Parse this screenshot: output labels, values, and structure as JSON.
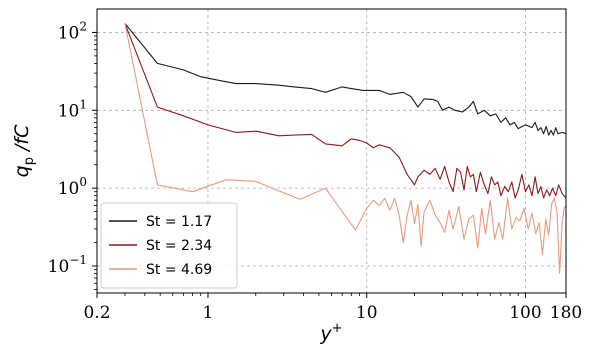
{
  "chart_data": {
    "type": "line",
    "title": "",
    "x_scale": "log",
    "y_scale": "log",
    "xlim": [
      0.2,
      180
    ],
    "ylim": [
      0.045,
      200
    ],
    "grid": true,
    "legend_position": "lower-left",
    "xlabel": {
      "base": "y",
      "sup": "+"
    },
    "ylabel": {
      "base": "q",
      "sub": "p",
      "tail": " /fC"
    },
    "x_ticks": [
      {
        "value": 0.2,
        "label": "0.2"
      },
      {
        "value": 1,
        "label": "1"
      },
      {
        "value": 10,
        "label": "10"
      },
      {
        "value": 100,
        "label": "100"
      },
      {
        "value": 180,
        "label": "180"
      }
    ],
    "y_ticks": [
      {
        "value": 0.1,
        "base": "10",
        "exp": "−1"
      },
      {
        "value": 1,
        "base": "10",
        "exp": "0"
      },
      {
        "value": 10,
        "base": "10",
        "exp": "1"
      },
      {
        "value": 100,
        "base": "10",
        "exp": "2"
      }
    ],
    "series": [
      {
        "name": "St = 1.17",
        "color": "#1a1a1a",
        "points": [
          [
            0.3,
            130
          ],
          [
            0.48,
            40
          ],
          [
            0.7,
            33
          ],
          [
            0.9,
            27
          ],
          [
            1.2,
            24
          ],
          [
            1.5,
            22
          ],
          [
            2,
            22
          ],
          [
            2.8,
            21
          ],
          [
            3.5,
            20
          ],
          [
            4.5,
            19
          ],
          [
            5.5,
            17
          ],
          [
            7,
            20
          ],
          [
            8,
            19
          ],
          [
            9.5,
            18
          ],
          [
            10,
            18
          ],
          [
            12,
            18
          ],
          [
            14,
            16
          ],
          [
            17,
            17
          ],
          [
            19,
            15
          ],
          [
            21,
            11
          ],
          [
            23,
            14
          ],
          [
            26,
            13.8
          ],
          [
            28,
            13
          ],
          [
            30,
            10
          ],
          [
            33,
            11
          ],
          [
            36,
            10
          ],
          [
            40,
            9.5
          ],
          [
            44,
            11
          ],
          [
            47,
            13
          ],
          [
            50,
            9
          ],
          [
            55,
            10
          ],
          [
            60,
            8.5
          ],
          [
            65,
            9
          ],
          [
            70,
            7
          ],
          [
            75,
            8
          ],
          [
            80,
            6.5
          ],
          [
            85,
            7
          ],
          [
            90,
            5.8
          ],
          [
            95,
            6.2
          ],
          [
            100,
            6.5
          ],
          [
            110,
            6
          ],
          [
            115,
            7
          ],
          [
            120,
            5.5
          ],
          [
            125,
            6
          ],
          [
            130,
            5
          ],
          [
            135,
            6.2
          ],
          [
            140,
            4.8
          ],
          [
            145,
            5.5
          ],
          [
            150,
            4.8
          ],
          [
            155,
            6
          ],
          [
            160,
            5
          ],
          [
            170,
            5.2
          ],
          [
            180,
            5
          ]
        ]
      },
      {
        "name": "St = 2.34",
        "color": "#8b1a1a",
        "points": [
          [
            0.3,
            130
          ],
          [
            0.48,
            11
          ],
          [
            0.7,
            8.5
          ],
          [
            1,
            6.5
          ],
          [
            1.5,
            5.2
          ],
          [
            2,
            5.4
          ],
          [
            2.8,
            4.7
          ],
          [
            3.5,
            4.8
          ],
          [
            4.5,
            4.9
          ],
          [
            5.5,
            3.7
          ],
          [
            7,
            3.5
          ],
          [
            8,
            4.3
          ],
          [
            9,
            4.1
          ],
          [
            10,
            3.8
          ],
          [
            11,
            3.3
          ],
          [
            12,
            3.6
          ],
          [
            14,
            3.3
          ],
          [
            16,
            2.5
          ],
          [
            18,
            1.5
          ],
          [
            20,
            1.1
          ],
          [
            21,
            1.4
          ],
          [
            23,
            1.7
          ],
          [
            25,
            1.5
          ],
          [
            27,
            1.8
          ],
          [
            29,
            1.3
          ],
          [
            31,
            1.9
          ],
          [
            33,
            1.2
          ],
          [
            35,
            0.9
          ],
          [
            37,
            1.8
          ],
          [
            39,
            1.6
          ],
          [
            41,
            0.95
          ],
          [
            43,
            1.9
          ],
          [
            45,
            1.4
          ],
          [
            47,
            1.5
          ],
          [
            49,
            0.9
          ],
          [
            52,
            1.6
          ],
          [
            55,
            1.1
          ],
          [
            58,
            0.85
          ],
          [
            61,
            1.4
          ],
          [
            64,
            1.1
          ],
          [
            67,
            1.2
          ],
          [
            70,
            0.8
          ],
          [
            74,
            1.05
          ],
          [
            78,
            0.9
          ],
          [
            82,
            1.2
          ],
          [
            86,
            0.75
          ],
          [
            90,
            0.95
          ],
          [
            95,
            1.5
          ],
          [
            100,
            0.9
          ],
          [
            105,
            1.1
          ],
          [
            110,
            0.8
          ],
          [
            115,
            1.4
          ],
          [
            120,
            0.85
          ],
          [
            125,
            1.05
          ],
          [
            130,
            0.75
          ],
          [
            136,
            0.95
          ],
          [
            142,
            0.8
          ],
          [
            148,
            1.0
          ],
          [
            155,
            0.8
          ],
          [
            162,
            1.1
          ],
          [
            170,
            0.85
          ],
          [
            180,
            0.75
          ]
        ]
      },
      {
        "name": "St = 4.69",
        "color": "#e89a80",
        "points": [
          [
            0.3,
            130
          ],
          [
            0.48,
            1.1
          ],
          [
            0.8,
            0.9
          ],
          [
            1.3,
            1.28
          ],
          [
            2,
            1.22
          ],
          [
            2.8,
            0.92
          ],
          [
            3.8,
            0.72
          ],
          [
            5.5,
            1.0
          ],
          [
            7,
            0.5
          ],
          [
            8.5,
            0.29
          ],
          [
            10,
            0.55
          ],
          [
            11,
            0.7
          ],
          [
            12,
            0.6
          ],
          [
            13,
            0.74
          ],
          [
            14,
            0.52
          ],
          [
            15,
            0.74
          ],
          [
            16,
            0.45
          ],
          [
            17,
            0.2
          ],
          [
            18,
            0.45
          ],
          [
            19,
            0.7
          ],
          [
            20,
            0.35
          ],
          [
            21,
            0.62
          ],
          [
            22,
            0.18
          ],
          [
            23,
            0.5
          ],
          [
            25,
            0.7
          ],
          [
            27,
            0.45
          ],
          [
            29,
            0.36
          ],
          [
            31,
            0.27
          ],
          [
            33,
            0.52
          ],
          [
            35,
            0.3
          ],
          [
            38,
            0.58
          ],
          [
            41,
            0.22
          ],
          [
            44,
            0.4
          ],
          [
            47,
            0.45
          ],
          [
            50,
            0.17
          ],
          [
            53,
            0.55
          ],
          [
            56,
            0.26
          ],
          [
            60,
            0.7
          ],
          [
            64,
            0.22
          ],
          [
            68,
            0.36
          ],
          [
            72,
            0.22
          ],
          [
            77,
            0.75
          ],
          [
            82,
            0.3
          ],
          [
            87,
            0.42
          ],
          [
            92,
            0.38
          ],
          [
            98,
            0.55
          ],
          [
            104,
            0.3
          ],
          [
            110,
            0.48
          ],
          [
            116,
            0.26
          ],
          [
            122,
            0.36
          ],
          [
            128,
            0.14
          ],
          [
            134,
            0.4
          ],
          [
            140,
            0.25
          ],
          [
            146,
            0.62
          ],
          [
            152,
            0.75
          ],
          [
            158,
            0.5
          ],
          [
            164,
            0.08
          ],
          [
            170,
            0.35
          ],
          [
            175,
            0.55
          ],
          [
            180,
            0.6
          ]
        ]
      }
    ]
  }
}
